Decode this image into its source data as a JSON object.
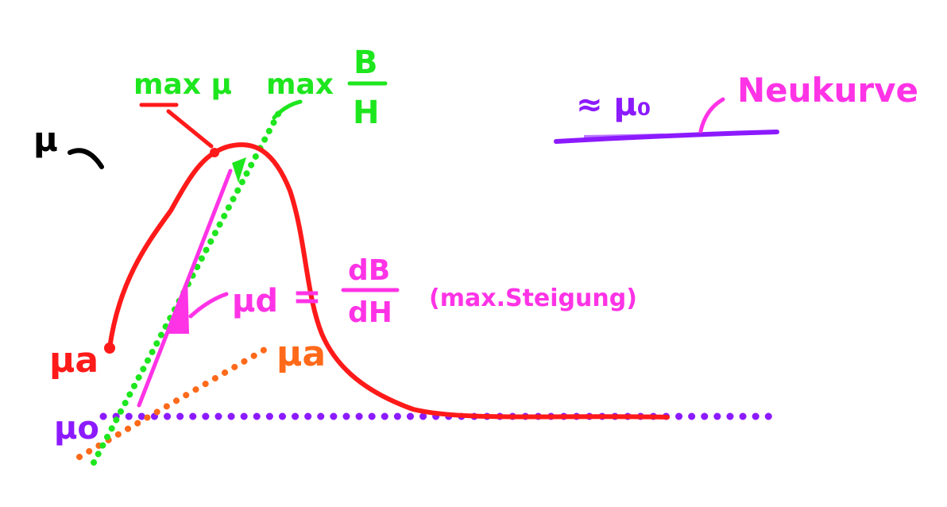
{
  "labels": {
    "mu_axis": "μ",
    "max_mu": "max μ",
    "max": "max",
    "frac_top_B": "B",
    "frac_bottom_H": "H",
    "approx_mu0": "≈ μ₀",
    "neukurve": "Neukurve",
    "mu_d": "μd",
    "equals": "=",
    "dB": "dB",
    "dH": "dH",
    "max_steigung": "(max.Steigung)",
    "mu_a_left": "μa",
    "mu_a_right": "μa",
    "mu_0": "μo"
  },
  "colors": {
    "red": "#ff1a1a",
    "green": "#1ee61e",
    "magenta": "#ff33e6",
    "purple": "#8c1aff",
    "orange": "#ff6a1a",
    "black": "#000000"
  }
}
